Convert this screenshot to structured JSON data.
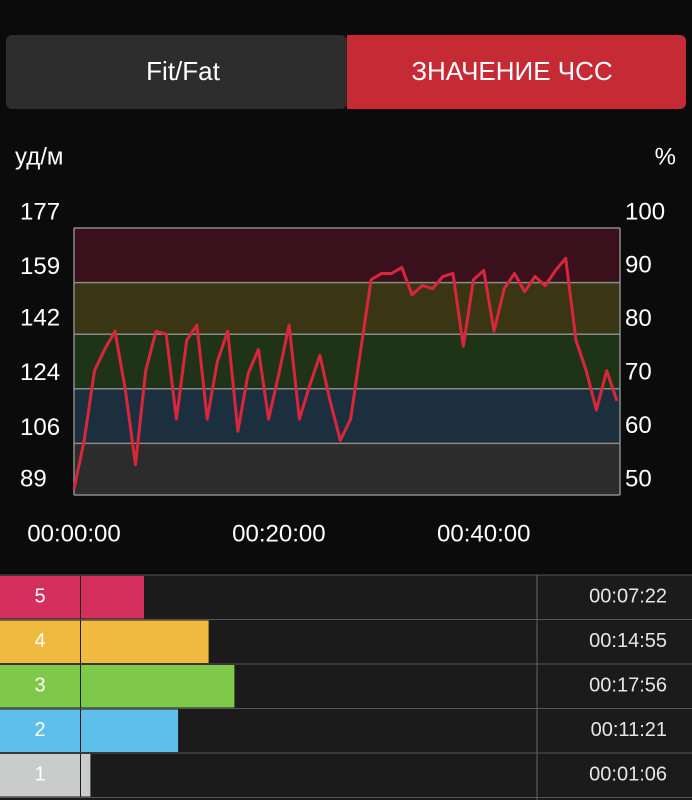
{
  "tabs": [
    "Fit/Fat",
    "ЗНАЧЕНИЕ ЧСС"
  ],
  "chart_data": {
    "type": "line",
    "y_label": "уд/м",
    "y2_label": "%",
    "x": [
      0,
      1,
      2,
      3,
      4,
      5,
      6,
      7,
      8,
      9,
      10,
      11,
      12,
      13,
      14,
      15,
      16,
      17,
      18,
      19,
      20,
      21,
      22,
      23,
      24,
      25,
      26,
      27,
      28,
      29,
      30,
      31,
      32,
      33,
      34,
      35,
      36,
      37,
      38,
      39,
      40,
      41,
      42,
      43,
      44,
      45,
      46,
      47,
      48,
      49,
      50,
      51,
      52,
      53
    ],
    "series": [
      {
        "color": "#d8263a",
        "values": [
          91,
          107,
          130,
          137,
          143,
          124,
          99,
          130,
          143,
          142,
          114,
          140,
          145,
          114,
          133,
          143,
          110,
          129,
          137,
          114,
          129,
          145,
          114,
          125,
          135,
          120,
          107,
          114,
          137,
          160,
          162,
          162,
          164,
          155,
          158,
          157,
          161,
          162,
          138,
          160,
          163,
          143,
          157,
          162,
          156,
          161,
          158,
          163,
          167,
          140,
          130,
          117,
          130,
          120
        ]
      }
    ],
    "xlim": [
      0,
      53.3
    ],
    "xticks": [
      {
        "value": 0,
        "label": "00:00:00"
      },
      {
        "value": 20,
        "label": "00:20:00"
      },
      {
        "value": 40,
        "label": "00:40:00"
      }
    ],
    "ylim": [
      89,
      177
    ],
    "yticks": [
      89,
      106,
      124,
      142,
      159,
      177
    ],
    "y2lim": [
      50,
      100
    ],
    "y2ticks": [
      50,
      60,
      70,
      80,
      90,
      100
    ],
    "band_colors": [
      "#2c2c2c",
      "#1b2f3f",
      "#1f3417",
      "#3a3513",
      "#3a101d"
    ],
    "grid": true
  },
  "zones": [
    {
      "label": "5",
      "color": "#d3305e",
      "time": "00:07:22"
    },
    {
      "label": "4",
      "color": "#f0b93f",
      "time": "00:14:55"
    },
    {
      "label": "3",
      "color": "#7ec84a",
      "time": "00:17:56"
    },
    {
      "label": "2",
      "color": "#5ec0ea",
      "time": "00:11:21"
    },
    {
      "label": "1",
      "color": "#c9cccb",
      "time": "00:01:06"
    }
  ]
}
